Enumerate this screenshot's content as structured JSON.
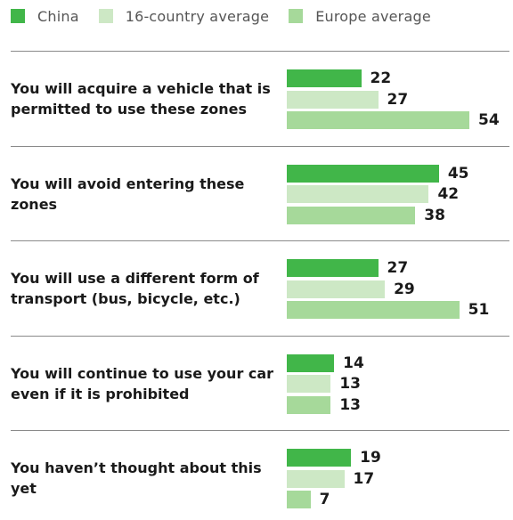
{
  "chart_data": {
    "type": "bar",
    "orientation": "horizontal",
    "legend_position": "top-left",
    "grid": false,
    "series": [
      {
        "name": "China",
        "color": "#41b649"
      },
      {
        "name": "16-country average",
        "color": "#cde8c5"
      },
      {
        "name": "Europe average",
        "color": "#a6d99a"
      }
    ],
    "groups": [
      {
        "label": "You will acquire a vehicle that is permitted to use these zones",
        "values": [
          22,
          27,
          54
        ]
      },
      {
        "label": "You will avoid entering these zones",
        "values": [
          45,
          42,
          38
        ]
      },
      {
        "label": "You will use a different form of transport (bus, bicycle, etc.)",
        "values": [
          27,
          29,
          51
        ]
      },
      {
        "label": "You will continue to use your car even if it is prohibited",
        "values": [
          14,
          13,
          13
        ]
      },
      {
        "label": "You haven’t thought about this yet",
        "values": [
          19,
          17,
          7
        ]
      }
    ],
    "xlim": [
      0,
      54
    ]
  },
  "legend_display": [
    {
      "label": "China",
      "color": "#41b649"
    },
    {
      "label": "16-country average",
      "color": "#cde8c5"
    },
    {
      "label": "Europe average",
      "color": "#a6d99a"
    }
  ]
}
